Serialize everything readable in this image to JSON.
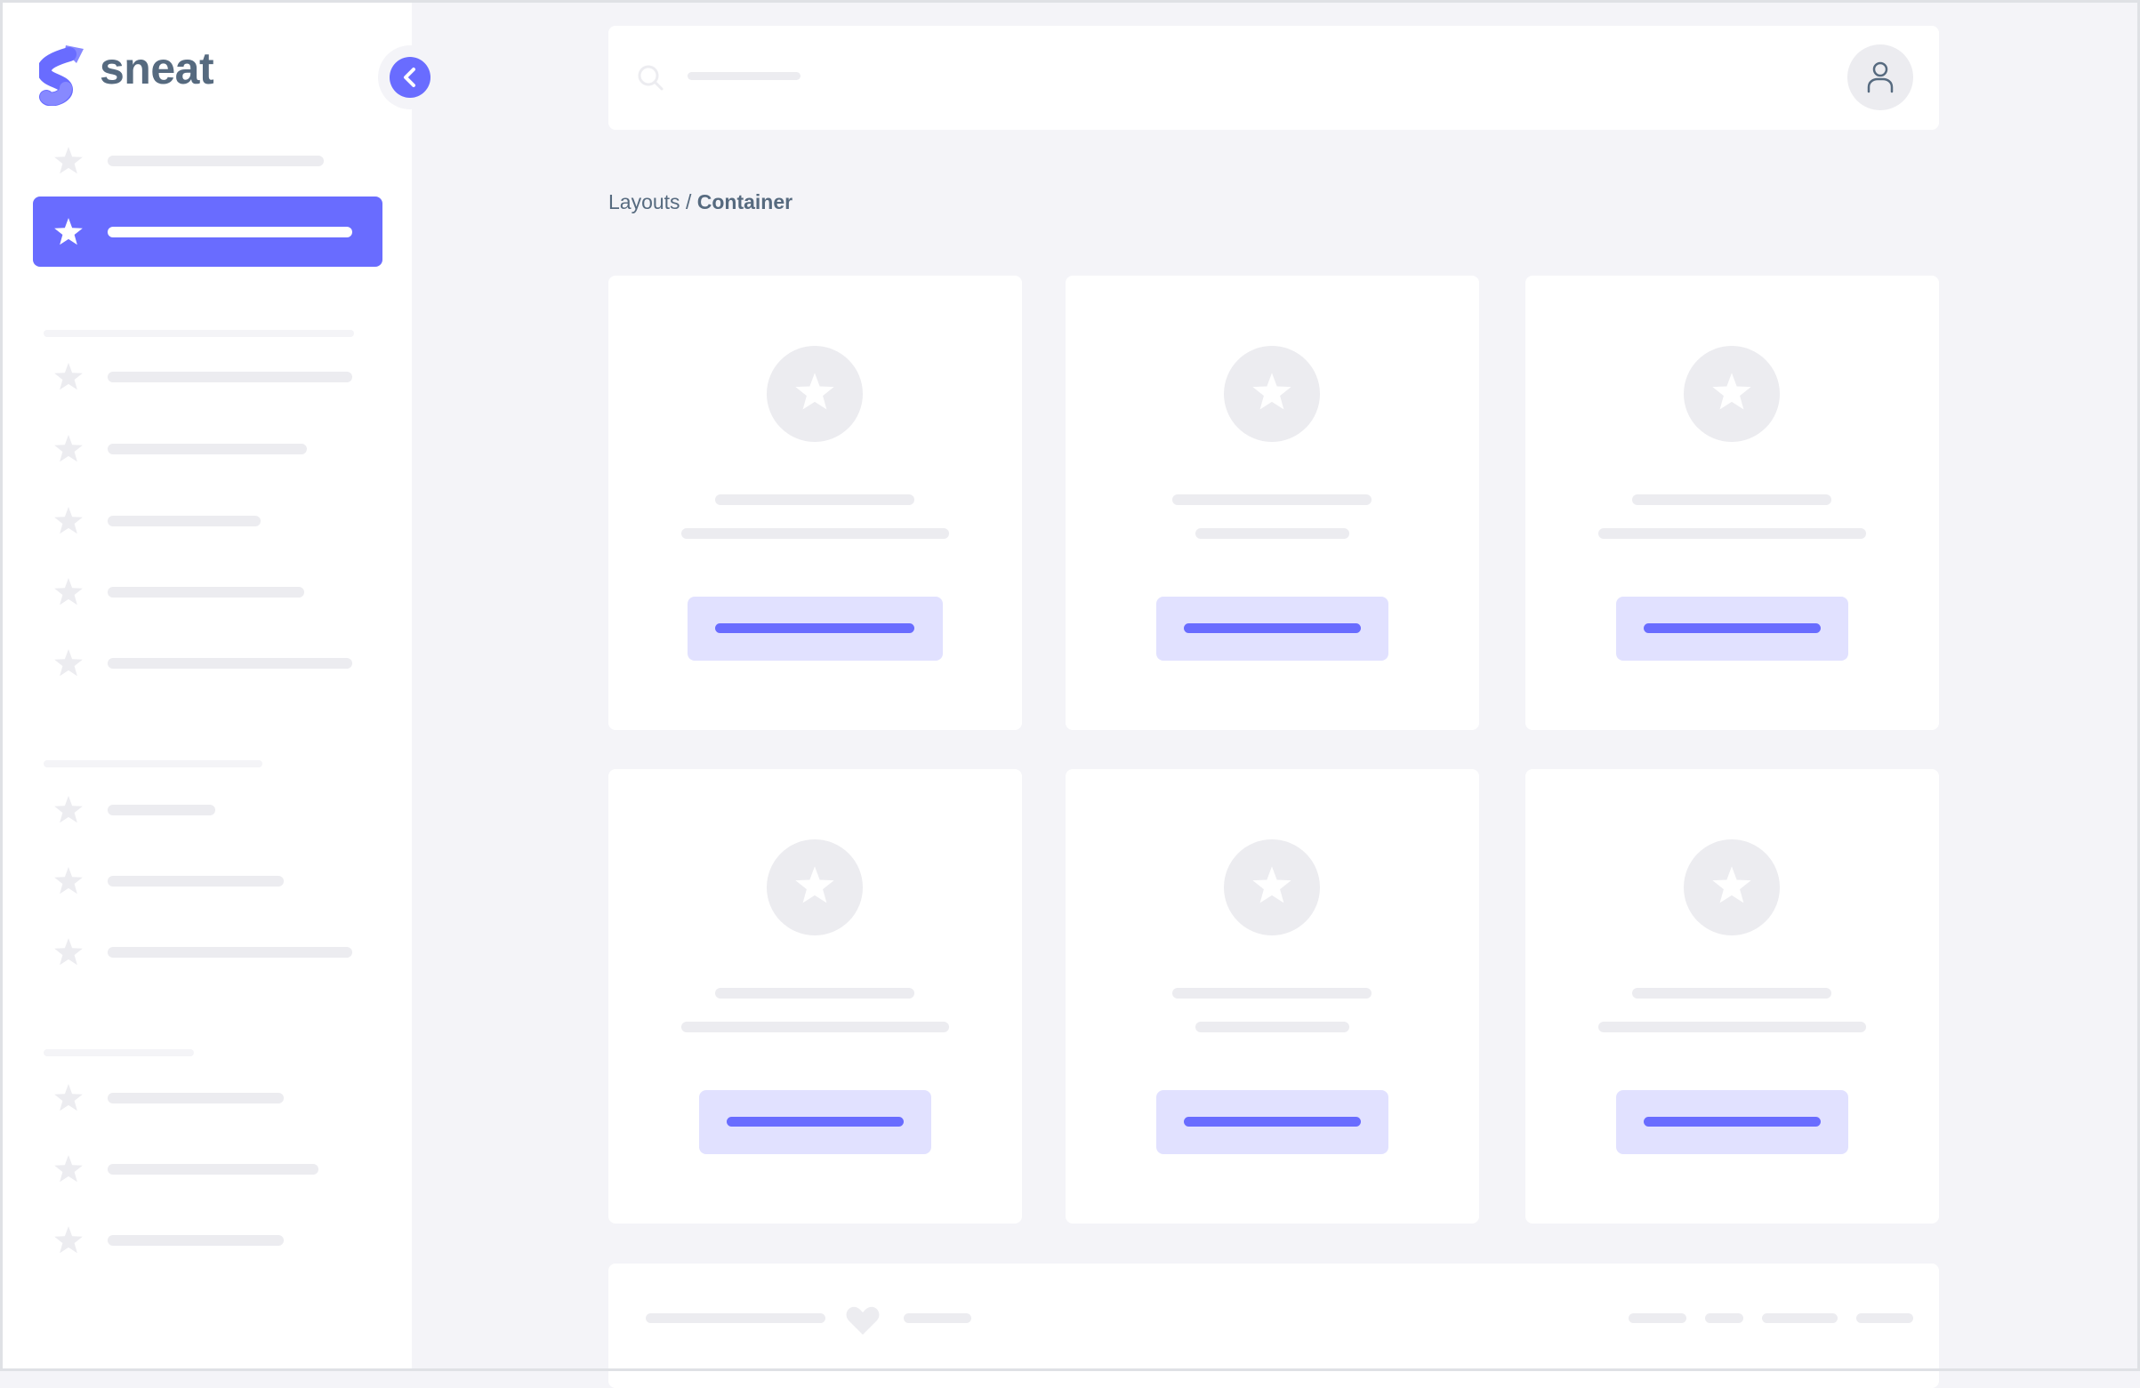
{
  "brand": {
    "name": "sneat",
    "logo_icon": "sneat-logo"
  },
  "sidebar": {
    "collapse_icon": "chevron-left-icon",
    "item_icon": "star-icon",
    "active_index": 1
  },
  "header": {
    "search_icon": "search-icon",
    "avatar_icon": "user-icon"
  },
  "breadcrumb": {
    "parent": "Layouts",
    "separator": " / ",
    "current": "Container"
  },
  "footer": {
    "icon": "heart-icon"
  },
  "colors": {
    "primary": "#696cff",
    "primary_light": "#e1e1ff",
    "text": "#566a7f",
    "background": "#f4f4f8",
    "placeholder": "#ececf0"
  }
}
